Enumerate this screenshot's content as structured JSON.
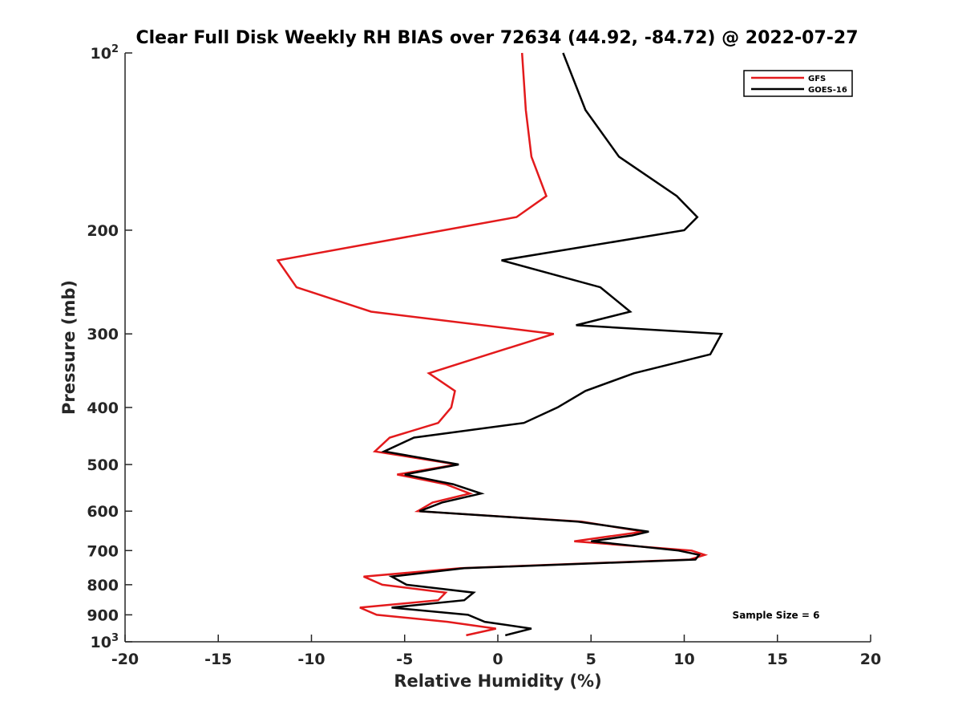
{
  "chart_data": {
    "type": "line",
    "title": "Clear Full Disk Weekly RH BIAS over 72634 (44.92, -84.72) @ 2022-07-27",
    "xlabel": "Relative Humidity (%)",
    "ylabel": "Pressure (mb)",
    "xlim": [
      -20,
      20
    ],
    "ylim": [
      100,
      1000
    ],
    "yscale": "log",
    "yreversed": true,
    "x_ticks": [
      -20,
      -15,
      -10,
      -5,
      0,
      5,
      10,
      15,
      20
    ],
    "x_tick_labels": [
      "-20",
      "-15",
      "-10",
      "-5",
      "0",
      "5",
      "10",
      "15",
      "20"
    ],
    "y_ticks": [
      100,
      200,
      300,
      400,
      500,
      600,
      700,
      800,
      900,
      1000
    ],
    "y_tick_labels": [
      "10^2",
      "200",
      "300",
      "400",
      "500",
      "600",
      "700",
      "800",
      "900",
      "10^3"
    ],
    "y_tick_label_parts": [
      {
        "base": "10",
        "exp": "2"
      },
      {
        "base": "200",
        "exp": ""
      },
      {
        "base": "300",
        "exp": ""
      },
      {
        "base": "400",
        "exp": ""
      },
      {
        "base": "500",
        "exp": ""
      },
      {
        "base": "600",
        "exp": ""
      },
      {
        "base": "700",
        "exp": ""
      },
      {
        "base": "800",
        "exp": ""
      },
      {
        "base": "900",
        "exp": ""
      },
      {
        "base": "10",
        "exp": "3"
      }
    ],
    "grid": false,
    "legend_position": "top-right",
    "annotation": "Sample Size = 6",
    "series": [
      {
        "name": "GFS",
        "color": "#e31a1c",
        "points": [
          [
            1.3,
            100
          ],
          [
            1.5,
            125
          ],
          [
            1.8,
            150
          ],
          [
            2.6,
            175
          ],
          [
            1.0,
            190
          ],
          [
            -2.9,
            200
          ],
          [
            -11.8,
            225
          ],
          [
            -10.8,
            250
          ],
          [
            -6.8,
            275
          ],
          [
            3.0,
            300
          ],
          [
            -0.5,
            325
          ],
          [
            -3.7,
            350
          ],
          [
            -2.3,
            375
          ],
          [
            -2.5,
            400
          ],
          [
            -3.2,
            425
          ],
          [
            -5.8,
            450
          ],
          [
            -6.6,
            475
          ],
          [
            -2.2,
            500
          ],
          [
            -5.4,
            520
          ],
          [
            -2.8,
            540
          ],
          [
            -1.5,
            560
          ],
          [
            -3.5,
            580
          ],
          [
            -4.3,
            600
          ],
          [
            4.5,
            625
          ],
          [
            7.8,
            650
          ],
          [
            4.1,
            675
          ],
          [
            10.4,
            700
          ],
          [
            11.1,
            712
          ],
          [
            10.3,
            725
          ],
          [
            -2.0,
            750
          ],
          [
            -7.2,
            775
          ],
          [
            -6.2,
            800
          ],
          [
            -2.8,
            825
          ],
          [
            -3.2,
            850
          ],
          [
            -7.4,
            875
          ],
          [
            -6.5,
            900
          ],
          [
            -2.7,
            925
          ],
          [
            -0.1,
            950
          ],
          [
            -1.7,
            975
          ]
        ]
      },
      {
        "name": "GOES-16",
        "color": "#000000",
        "points": [
          [
            3.5,
            100
          ],
          [
            4.7,
            125
          ],
          [
            6.5,
            150
          ],
          [
            9.6,
            175
          ],
          [
            10.7,
            190
          ],
          [
            10.0,
            200
          ],
          [
            0.2,
            225
          ],
          [
            5.5,
            250
          ],
          [
            7.1,
            275
          ],
          [
            4.2,
            290
          ],
          [
            12.0,
            300
          ],
          [
            11.4,
            325
          ],
          [
            7.3,
            350
          ],
          [
            4.7,
            375
          ],
          [
            3.2,
            400
          ],
          [
            1.4,
            425
          ],
          [
            -4.5,
            450
          ],
          [
            -6.1,
            475
          ],
          [
            -2.1,
            500
          ],
          [
            -5.0,
            520
          ],
          [
            -2.4,
            540
          ],
          [
            -0.9,
            560
          ],
          [
            -3.0,
            580
          ],
          [
            -4.2,
            600
          ],
          [
            4.3,
            625
          ],
          [
            8.1,
            650
          ],
          [
            7.2,
            660
          ],
          [
            5.0,
            675
          ],
          [
            9.7,
            700
          ],
          [
            10.8,
            712
          ],
          [
            10.6,
            725
          ],
          [
            -1.8,
            750
          ],
          [
            -5.7,
            775
          ],
          [
            -4.9,
            800
          ],
          [
            -1.3,
            825
          ],
          [
            -1.8,
            850
          ],
          [
            -5.7,
            875
          ],
          [
            -1.6,
            900
          ],
          [
            -0.7,
            925
          ],
          [
            1.8,
            950
          ],
          [
            0.4,
            975
          ]
        ]
      }
    ]
  }
}
